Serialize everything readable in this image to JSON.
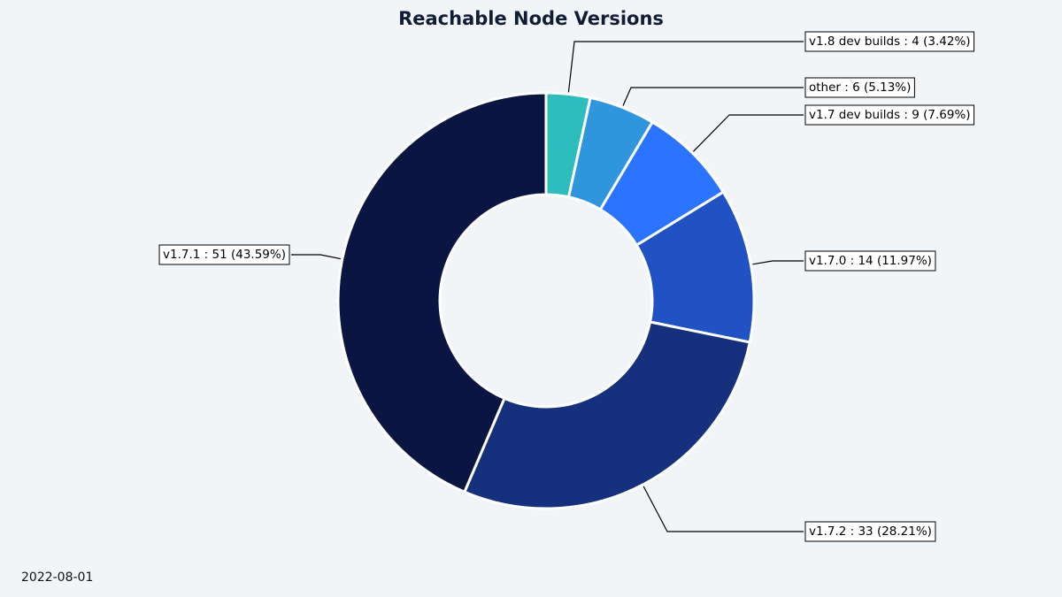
{
  "chart_data": {
    "type": "pie",
    "title": "Reachable Node Versions",
    "slices": [
      {
        "label": "v1.8 dev builds",
        "value": 4,
        "percent": "3.42%",
        "color": "#2dbdbd"
      },
      {
        "label": "other",
        "value": 6,
        "percent": "5.13%",
        "color": "#2f96dd"
      },
      {
        "label": "v1.7 dev builds",
        "value": 9,
        "percent": "7.69%",
        "color": "#2b74ff"
      },
      {
        "label": "v1.7.0",
        "value": 14,
        "percent": "11.97%",
        "color": "#2052c4"
      },
      {
        "label": "v1.7.2",
        "value": 33,
        "percent": "28.21%",
        "color": "#15307d"
      },
      {
        "label": "v1.7.1",
        "value": 51,
        "percent": "43.59%",
        "color": "#0a1542"
      }
    ],
    "donut": true,
    "legend": "none"
  },
  "footer": {
    "date": "2022-08-01"
  },
  "colors": {
    "background": "#f2f5f7",
    "title": "#0f1d36",
    "slice_edge": "#ffffff"
  }
}
